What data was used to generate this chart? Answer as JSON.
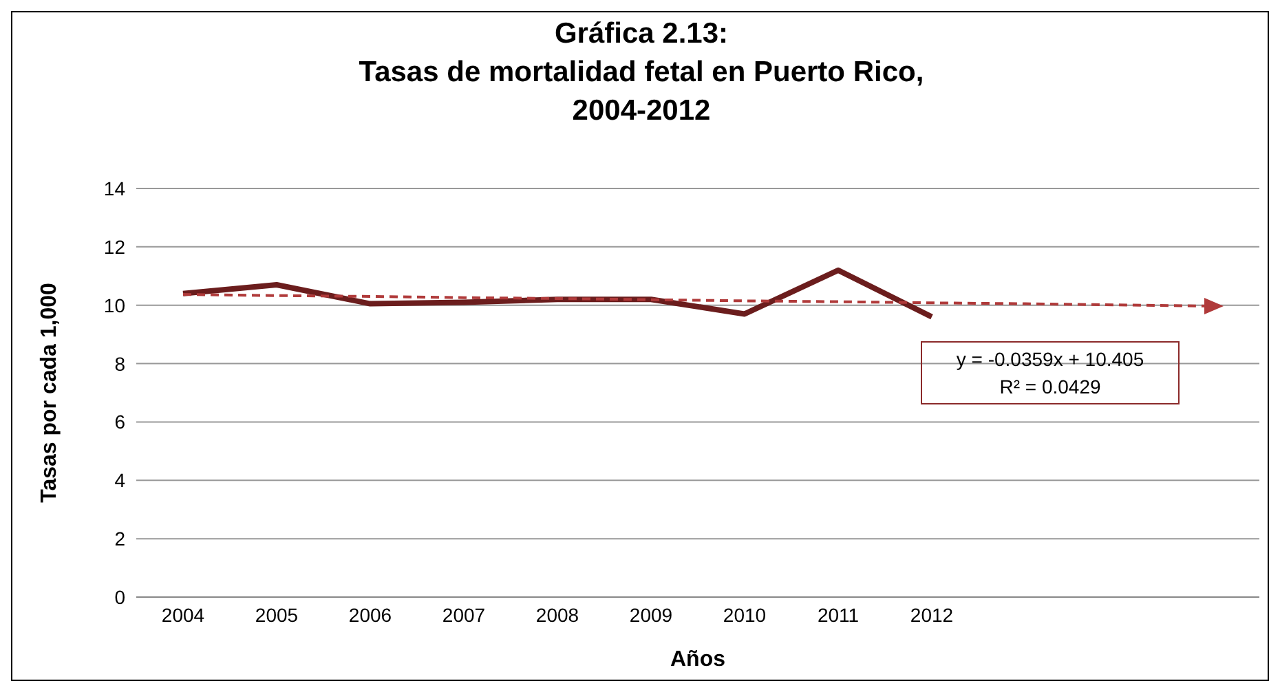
{
  "chart_data": {
    "type": "line",
    "title": "Gráfica 2.13:\nTasas de mortalidad fetal en Puerto Rico,\n2004-2012",
    "xlabel": "Años",
    "ylabel": "Tasas por cada 1,000",
    "categories": [
      "2004",
      "2005",
      "2006",
      "2007",
      "2008",
      "2009",
      "2010",
      "2011",
      "2012",
      null,
      null,
      null
    ],
    "series": [
      {
        "color": "#6b1d1d",
        "values": [
          10.4,
          10.7,
          10.05,
          10.1,
          10.2,
          10.2,
          9.7,
          11.2,
          9.6,
          null,
          null,
          null
        ]
      },
      {
        "type": "line",
        "color": "#b03a3a",
        "line_style": "dashed",
        "values": [
          10.37,
          10.33,
          10.3,
          10.26,
          10.23,
          10.19,
          10.15,
          10.12,
          10.08,
          10.05,
          10.01,
          9.97
        ]
      }
    ],
    "ylim": [
      0,
      14
    ],
    "yticks": [
      0,
      2,
      4,
      6,
      8,
      10,
      12,
      14
    ],
    "grid": "y",
    "marker": "none",
    "annotations": [
      "y = -0.0359x + 10.405\nR² = 0.0429"
    ]
  }
}
